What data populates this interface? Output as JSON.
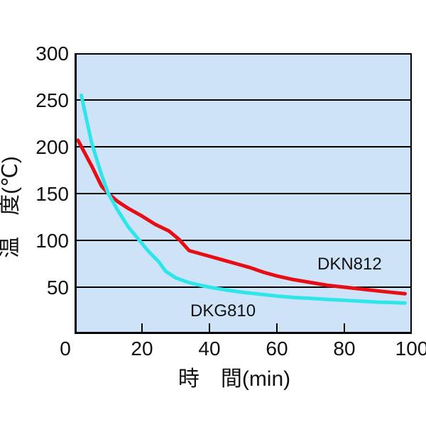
{
  "chart_data": {
    "type": "line",
    "title": "",
    "xlabel": "時　間(min)",
    "ylabel": "温　度(℃)",
    "x_unit": "min",
    "y_unit": "℃",
    "xlim": [
      0,
      100
    ],
    "ylim": [
      0,
      300
    ],
    "x_ticks": [
      0,
      20,
      40,
      60,
      80,
      100
    ],
    "y_ticks": [
      50,
      100,
      150,
      200,
      250,
      300
    ],
    "grid": "horizontal-only",
    "legend_position": "inline-annotations",
    "plot_background": "#cfe3f8",
    "grid_color": "#000000",
    "axis_color": "#000000",
    "series": [
      {
        "name": "DKN812",
        "color": "#e60e14",
        "points": [
          [
            1,
            207
          ],
          [
            5,
            180
          ],
          [
            8,
            158
          ],
          [
            10,
            150
          ],
          [
            13,
            141
          ],
          [
            16,
            134
          ],
          [
            20,
            126
          ],
          [
            24,
            117
          ],
          [
            28,
            110
          ],
          [
            31,
            101
          ],
          [
            34,
            89
          ],
          [
            40,
            83
          ],
          [
            44,
            79
          ],
          [
            48,
            75
          ],
          [
            52,
            71
          ],
          [
            56,
            66
          ],
          [
            60,
            62
          ],
          [
            65,
            58
          ],
          [
            70,
            55
          ],
          [
            75,
            52
          ],
          [
            80,
            50
          ],
          [
            85,
            48
          ],
          [
            90,
            46
          ],
          [
            94,
            44.5
          ],
          [
            98,
            43
          ]
        ]
      },
      {
        "name": "DKG810",
        "color": "#2ee6ea",
        "points": [
          [
            2,
            255
          ],
          [
            5,
            205
          ],
          [
            8,
            170
          ],
          [
            10,
            150
          ],
          [
            13,
            131
          ],
          [
            16,
            114
          ],
          [
            19,
            101
          ],
          [
            22,
            88
          ],
          [
            25,
            77
          ],
          [
            27,
            67
          ],
          [
            30,
            60
          ],
          [
            33,
            56
          ],
          [
            36,
            53
          ],
          [
            40,
            50
          ],
          [
            45,
            47
          ],
          [
            50,
            44.5
          ],
          [
            55,
            42.5
          ],
          [
            60,
            40.5
          ],
          [
            65,
            39
          ],
          [
            70,
            38
          ],
          [
            75,
            37
          ],
          [
            80,
            36
          ],
          [
            85,
            35
          ],
          [
            90,
            34
          ],
          [
            95,
            33.5
          ],
          [
            98,
            33
          ]
        ]
      }
    ]
  }
}
